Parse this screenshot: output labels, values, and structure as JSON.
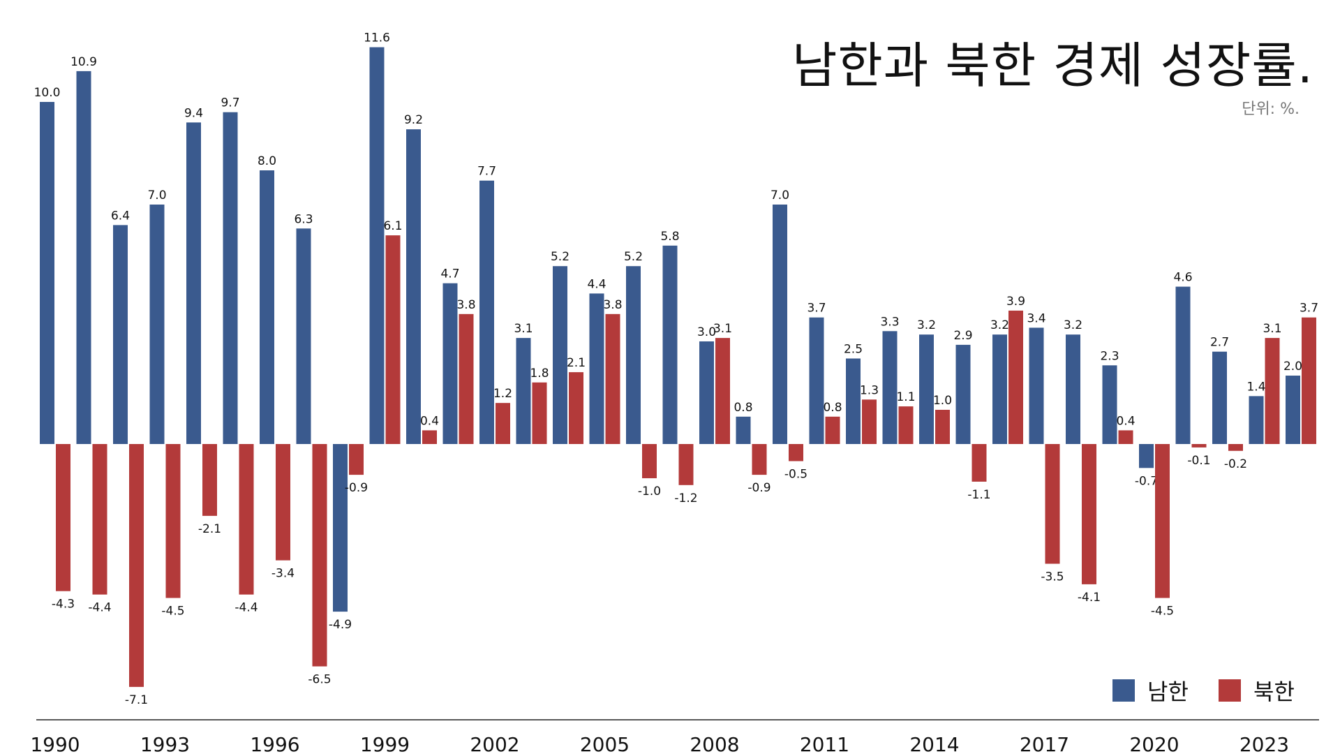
{
  "title": "남한과 북한 경제 성장률.",
  "unit": "단위: %.",
  "legend": [
    {
      "name": "남한",
      "color": "#3a5a8e"
    },
    {
      "name": "북한",
      "color": "#b33a3a"
    }
  ],
  "chart_data": {
    "type": "bar",
    "title": "남한과 북한 경제 성장률.",
    "ylabel": "",
    "xlabel": "",
    "categories": [
      1990,
      1991,
      1992,
      1993,
      1994,
      1995,
      1996,
      1997,
      1998,
      1999,
      2000,
      2001,
      2002,
      2003,
      2004,
      2005,
      2006,
      2007,
      2008,
      2009,
      2010,
      2011,
      2012,
      2013,
      2014,
      2015,
      2016,
      2017,
      2018,
      2019,
      2020,
      2021,
      2022,
      2023,
      2024
    ],
    "x_tick_labels": [
      "1990",
      "1993",
      "1996",
      "1999",
      "2002",
      "2005",
      "2008",
      "2011",
      "2014",
      "2017",
      "2020",
      "2023"
    ],
    "series": [
      {
        "name": "남한",
        "color": "#3a5a8e",
        "values": [
          10.0,
          10.9,
          6.4,
          7.0,
          9.4,
          9.7,
          8.0,
          6.3,
          -4.9,
          11.6,
          9.2,
          4.7,
          7.7,
          3.1,
          5.2,
          4.4,
          5.2,
          5.8,
          3.0,
          0.8,
          7.0,
          3.7,
          2.5,
          3.3,
          3.2,
          2.9,
          3.2,
          3.4,
          3.2,
          2.3,
          -0.7,
          4.6,
          2.7,
          1.4,
          2.0
        ]
      },
      {
        "name": "북한",
        "color": "#b33a3a",
        "values": [
          -4.3,
          -4.4,
          -7.1,
          -4.5,
          -2.1,
          -4.4,
          -3.4,
          -6.5,
          -0.9,
          6.1,
          0.4,
          3.8,
          1.2,
          1.8,
          2.1,
          3.8,
          -1.0,
          -1.2,
          3.1,
          -0.9,
          -0.5,
          0.8,
          1.3,
          1.1,
          1.0,
          -1.1,
          3.9,
          -3.5,
          -4.1,
          0.4,
          -4.5,
          -0.1,
          -0.2,
          3.1,
          3.7
        ]
      }
    ],
    "ylim": [
      -8,
      12
    ],
    "grid": false,
    "legend_position": "bottom-right"
  }
}
